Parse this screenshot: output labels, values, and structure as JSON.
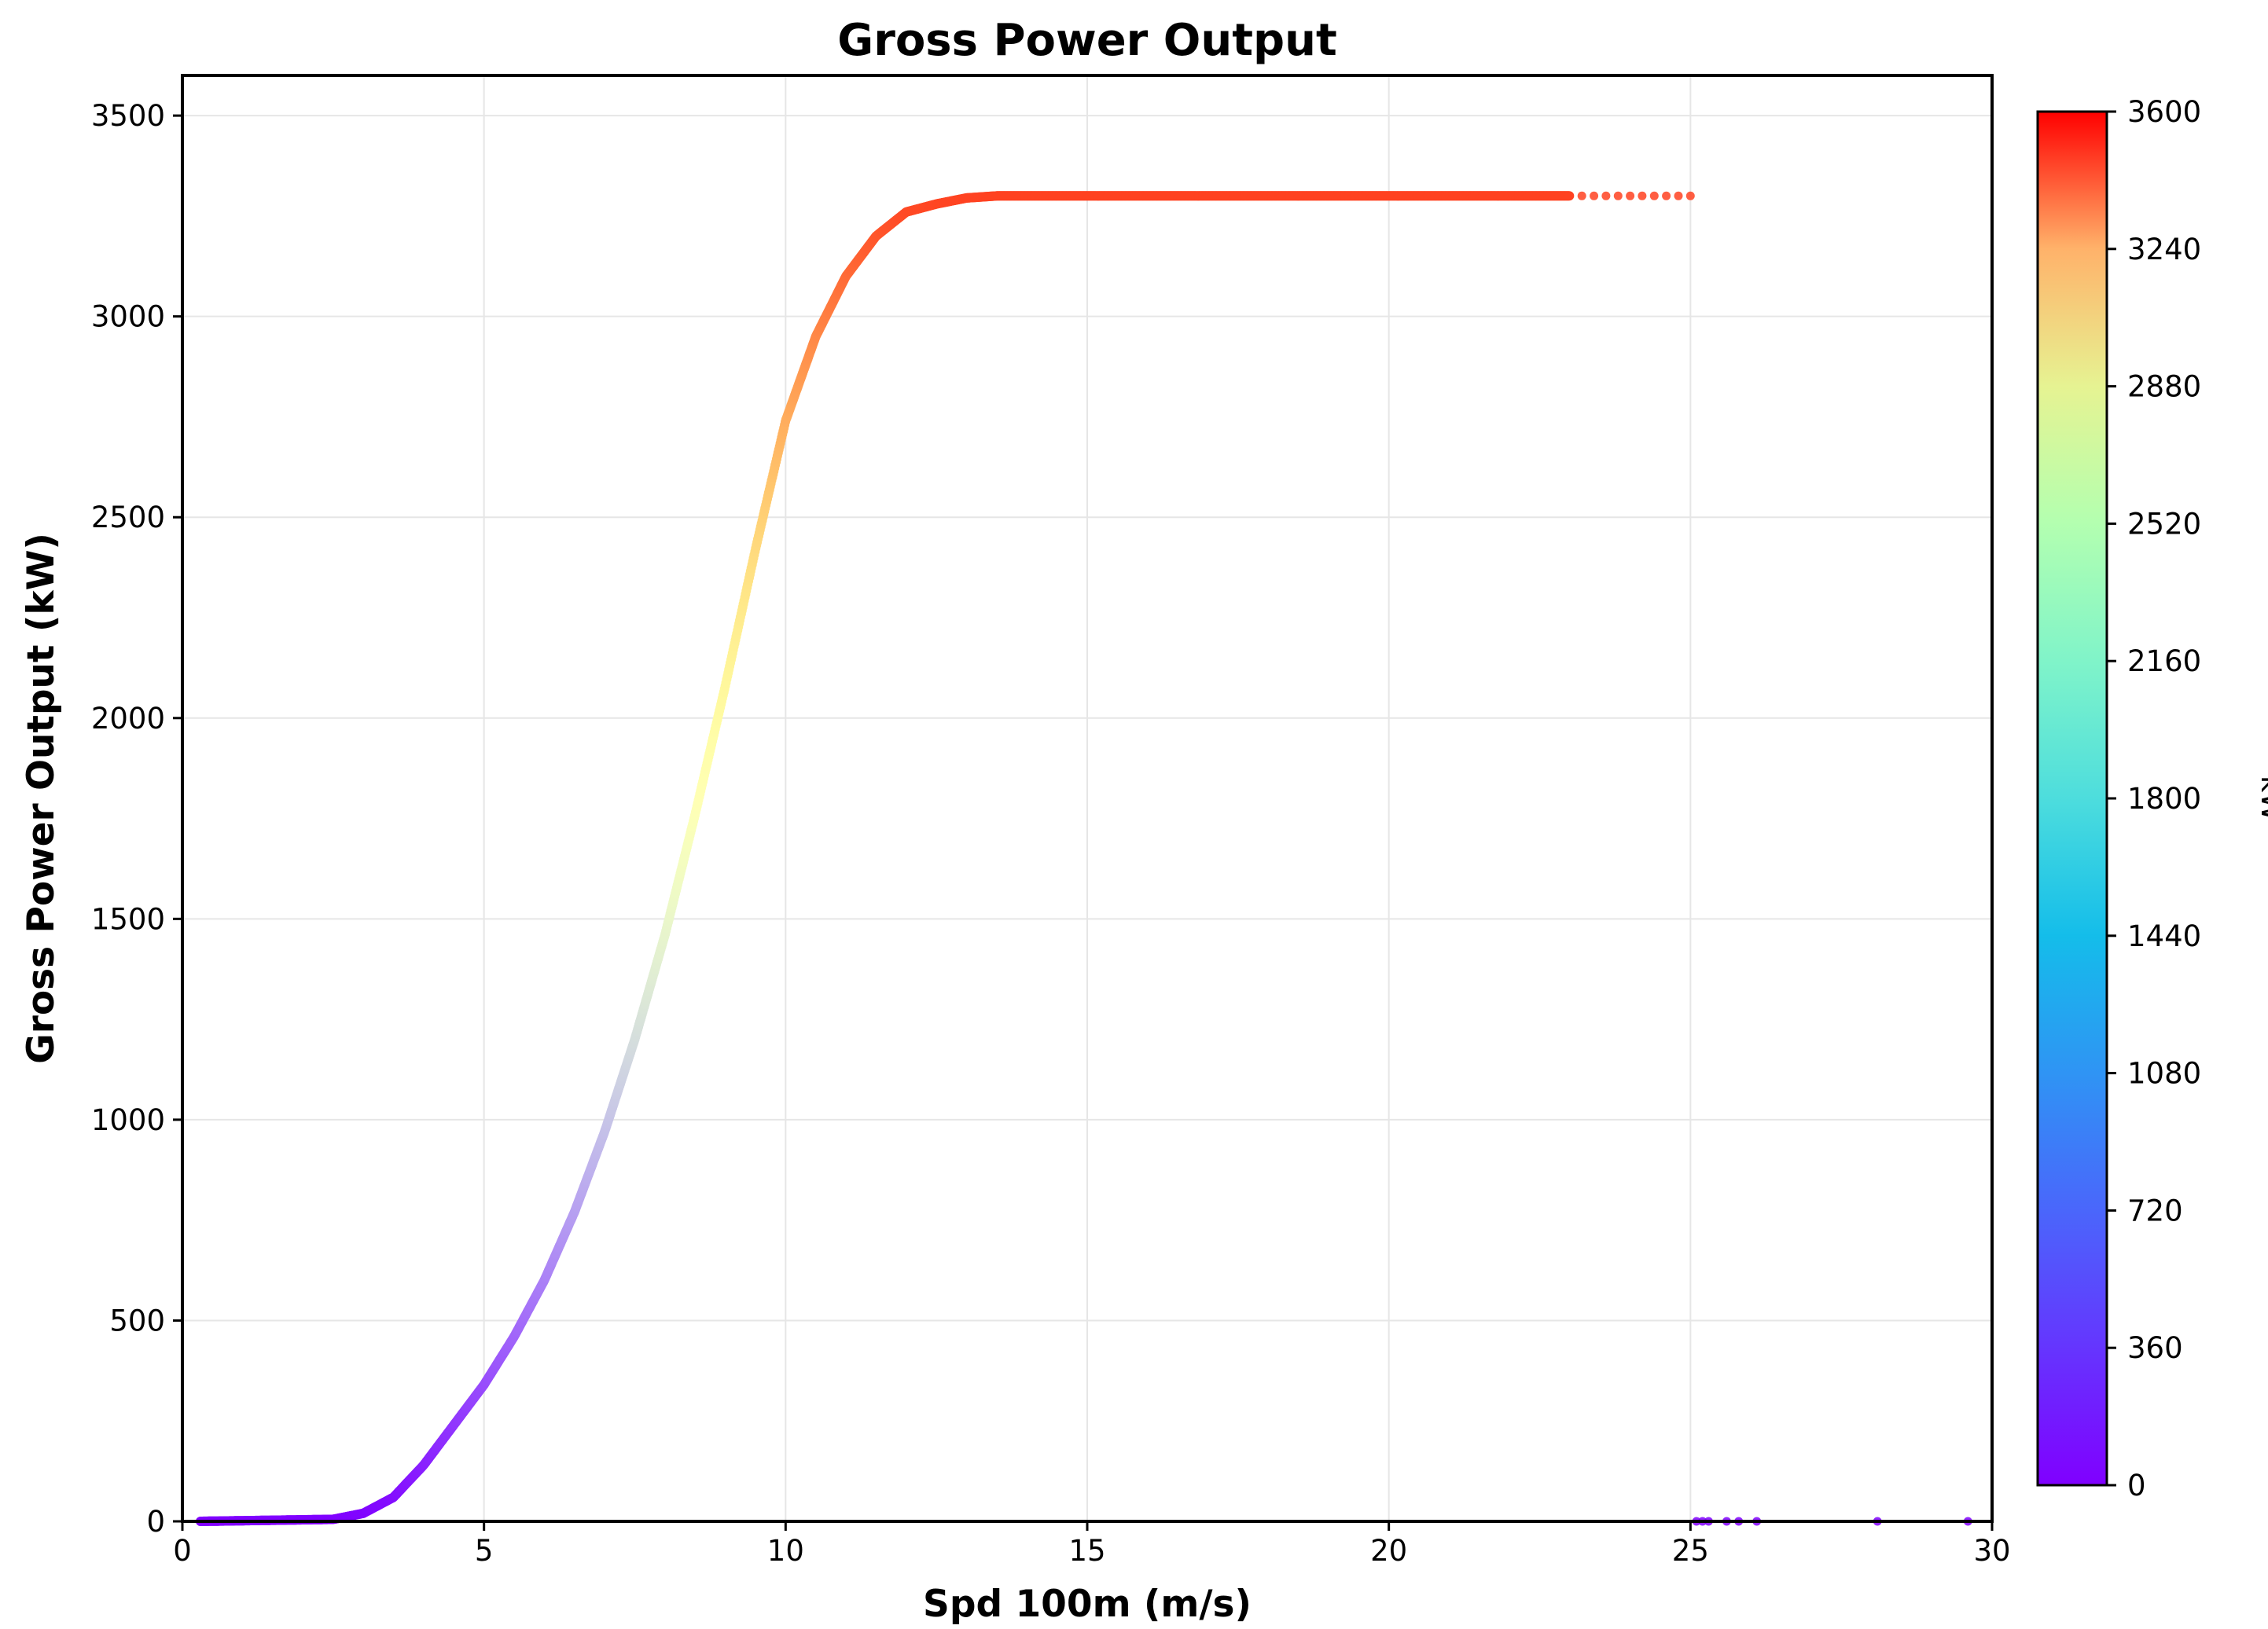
{
  "chart_data": {
    "type": "scatter",
    "title": "Gross Power Output",
    "xlabel": "Spd 100m (m/s)",
    "ylabel": "Gross Power Output (kW)",
    "xlim": [
      0,
      30
    ],
    "ylim": [
      0,
      3600
    ],
    "xticks": [
      0,
      5,
      10,
      15,
      20,
      25,
      30
    ],
    "yticks": [
      0,
      500,
      1000,
      1500,
      2000,
      2500,
      3000,
      3500
    ],
    "grid": true,
    "colormap": "rainbow",
    "colorbar": {
      "label": "kW",
      "range": [
        0,
        3600
      ],
      "ticks": [
        0,
        360,
        720,
        1080,
        1440,
        1800,
        2160,
        2520,
        2880,
        3240,
        3600
      ]
    },
    "power_curve": {
      "x": [
        0.3,
        2.5,
        3.0,
        3.5,
        4.0,
        4.5,
        5.0,
        5.5,
        6.0,
        6.5,
        7.0,
        7.5,
        8.0,
        8.5,
        9.0,
        9.5,
        10.0,
        10.5,
        11.0,
        11.5,
        12.0,
        12.5,
        13.0,
        13.5,
        14.0,
        20.0,
        23.0
      ],
      "y": [
        0,
        5,
        20,
        60,
        140,
        240,
        340,
        460,
        600,
        770,
        970,
        1200,
        1460,
        1760,
        2080,
        2420,
        2740,
        2950,
        3100,
        3200,
        3260,
        3280,
        3295,
        3300,
        3300,
        3300,
        3300
      ]
    },
    "sparse_points": {
      "x": [
        23.2,
        23.4,
        23.6,
        23.8,
        24.0,
        24.2,
        24.4,
        24.6,
        24.8,
        25.0,
        25.1,
        25.2,
        25.3,
        25.6,
        25.8,
        26.1,
        28.1,
        29.6
      ],
      "y": [
        3300,
        3300,
        3300,
        3300,
        3300,
        3300,
        3300,
        3300,
        3300,
        3300,
        0,
        0,
        0,
        0,
        0,
        0,
        0,
        0
      ]
    },
    "marker_colors": {
      "axes": "#000000",
      "grid": "#e6e6e6"
    }
  }
}
